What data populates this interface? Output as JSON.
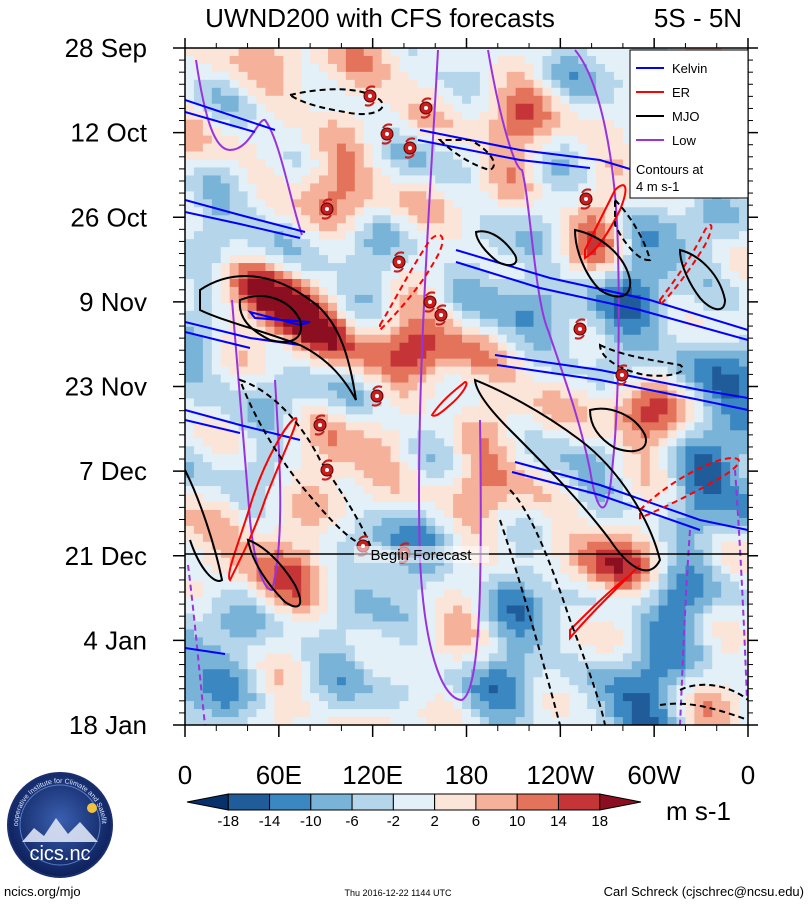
{
  "chart_data": {
    "type": "heatmap",
    "title": "UWND200 with CFS forecasts",
    "region_label": "5S - 5N",
    "y_dates": [
      "28 Sep",
      "12 Oct",
      "26 Oct",
      "9 Nov",
      "23 Nov",
      "7 Dec",
      "21 Dec",
      "4 Jan",
      "18 Jan"
    ],
    "x_ticks": [
      "0",
      "60E",
      "120E",
      "180",
      "120W",
      "60W",
      "0"
    ],
    "x_lon_range": [
      0,
      360
    ],
    "color_levels": [
      "-18",
      "-14",
      "-10",
      "-6",
      "-2",
      "2",
      "6",
      "10",
      "14",
      "18"
    ],
    "colors": [
      "#08306b",
      "#1f5c99",
      "#3a87c1",
      "#79b3d8",
      "#b5d6ea",
      "#e3f0f7",
      "#fbe4d8",
      "#f5b19a",
      "#e4735b",
      "#c53537",
      "#8b0f20"
    ],
    "units": "m s-1",
    "legend": [
      {
        "name": "Kelvin",
        "color": "#0000ff"
      },
      {
        "name": "ER",
        "color": "#ff0000"
      },
      {
        "name": "MJO",
        "color": "#000000"
      },
      {
        "name": "Low",
        "color": "#9933dd"
      }
    ],
    "contour_note_1": "Contours at",
    "contour_note_2": "4 m s-1",
    "forecast_label": "Begin Forecast",
    "forecast_date": "21 Dec"
  },
  "footer": {
    "url": "ncics.org/mjo",
    "timestamp": "Thu 2016-12-22 1144 UTC",
    "author": "Carl Schreck (cjschrec@ncsu.edu)",
    "logo_text": "cics.nc",
    "logo_ring": "Cooperative Institute for Climate and Satellites"
  }
}
